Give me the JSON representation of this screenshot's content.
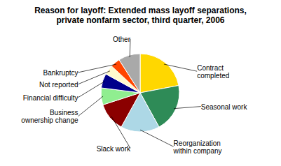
{
  "chart_data": {
    "type": "pie",
    "title": "Reason for layoff: Extended mass layoff separations,\nprivate nonfarm sector, third quarter, 2006",
    "categories": [
      "Contract\ncompleted",
      "Seasonal work",
      "Reorganization\nwithin company",
      "Slack work",
      "Business\nownership change",
      "Financial difficulty",
      "Not reported",
      "Bankruptcy",
      "Other"
    ],
    "values": [
      22,
      20,
      16,
      12,
      7,
      6,
      4,
      4,
      9
    ],
    "colors": [
      "#FFD700",
      "#2E8B57",
      "#ADD8E6",
      "#8B0000",
      "#90EE90",
      "#00008B",
      "#FFFACD",
      "#FF4500",
      "#A9A9A9"
    ]
  }
}
